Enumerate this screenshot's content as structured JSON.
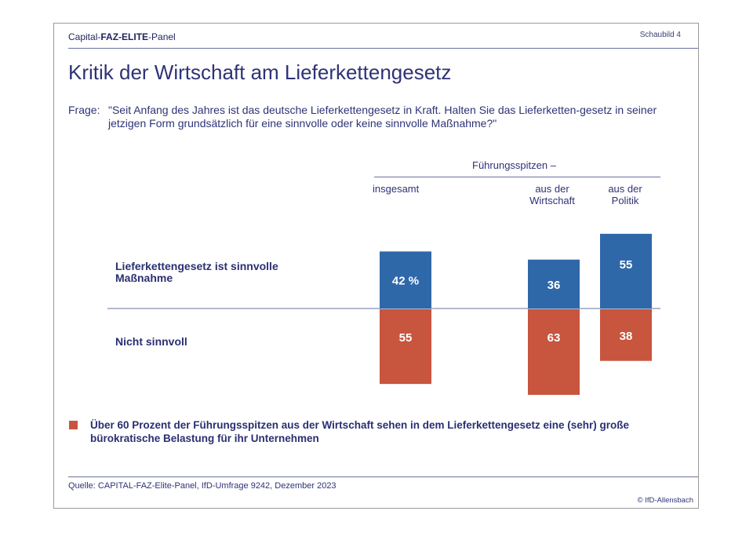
{
  "header": {
    "brand_prefix": "Capital-",
    "brand_strong": "FAZ-ELITE",
    "brand_suffix": "-Panel",
    "figure_no": "Schaubild 4"
  },
  "title": "Kritik der Wirtschaft am Lieferkettengesetz",
  "question": {
    "label": "Frage:",
    "text": "\"Seit Anfang des Jahres ist das deutsche Lieferkettengesetz in Kraft. Halten Sie das Lieferketten-gesetz in seiner jetzigen Form grundsätzlich für eine sinnvolle oder keine sinnvolle Maßnahme?\""
  },
  "chart_data": {
    "type": "bar",
    "group_label": "Führungsspitzen –",
    "categories": [
      "insgesamt",
      "aus der Wirtschaft",
      "aus der Politik"
    ],
    "series": [
      {
        "name": "Lieferkettengesetz ist sinnvolle Maßnahme",
        "values": [
          42,
          36,
          55
        ],
        "labels": [
          "42 %",
          "36",
          "55"
        ],
        "color": "#2f68a8"
      },
      {
        "name": "Nicht sinnvoll",
        "values": [
          55,
          63,
          38
        ],
        "labels": [
          "55",
          "63",
          "38"
        ],
        "color": "#c8553d"
      }
    ],
    "label_color": "#ffffff",
    "baseline_color": "#6b70a0"
  },
  "note": {
    "text": "Über 60 Prozent der Führungsspitzen aus der Wirtschaft sehen in dem Lieferkettengesetz eine (sehr) große bürokratische Belastung für ihr Unternehmen",
    "marker_color": "#c8553d"
  },
  "source": "Quelle: CAPITAL-FAZ-Elite-Panel, IfD-Umfrage 9242, Dezember 2023",
  "copyright": "© IfD-Allensbach"
}
